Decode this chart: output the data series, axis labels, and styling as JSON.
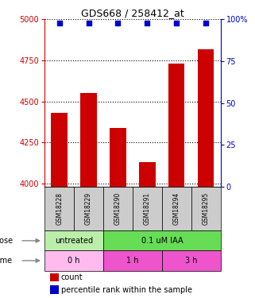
{
  "title": "GDS668 / 258412_at",
  "samples": [
    "GSM18228",
    "GSM18229",
    "GSM18290",
    "GSM18291",
    "GSM18294",
    "GSM18295"
  ],
  "bar_values": [
    4430,
    4550,
    4340,
    4130,
    4730,
    4820
  ],
  "percentile_values": [
    98,
    98,
    98,
    98,
    98,
    98
  ],
  "ylim_left": [
    3980,
    5000
  ],
  "ylim_right": [
    0,
    100
  ],
  "yticks_left": [
    4000,
    4250,
    4500,
    4750,
    5000
  ],
  "yticks_right": [
    0,
    25,
    50,
    75,
    100
  ],
  "bar_color": "#cc0000",
  "percentile_color": "#0000cc",
  "dose_labels": [
    {
      "text": "untreated",
      "span": [
        0,
        2
      ]
    },
    {
      "text": "0.1 uM IAA",
      "span": [
        2,
        6
      ]
    }
  ],
  "time_labels": [
    {
      "text": "0 h",
      "span": [
        0,
        2
      ]
    },
    {
      "text": "1 h",
      "span": [
        2,
        4
      ]
    },
    {
      "text": "3 h",
      "span": [
        4,
        6
      ]
    }
  ],
  "dose_row_label": "dose",
  "time_row_label": "time",
  "legend_count_label": "count",
  "legend_pct_label": "percentile rank within the sample",
  "left_axis_color": "#cc0000",
  "right_axis_color": "#0000cc",
  "sample_bg_color": "#cccccc",
  "dose_untreated_color": "#bbeeaa",
  "dose_treated_color": "#66dd55",
  "time_0h_color": "#ffbbee",
  "time_1h_color": "#ee55cc",
  "time_3h_color": "#ee55cc"
}
